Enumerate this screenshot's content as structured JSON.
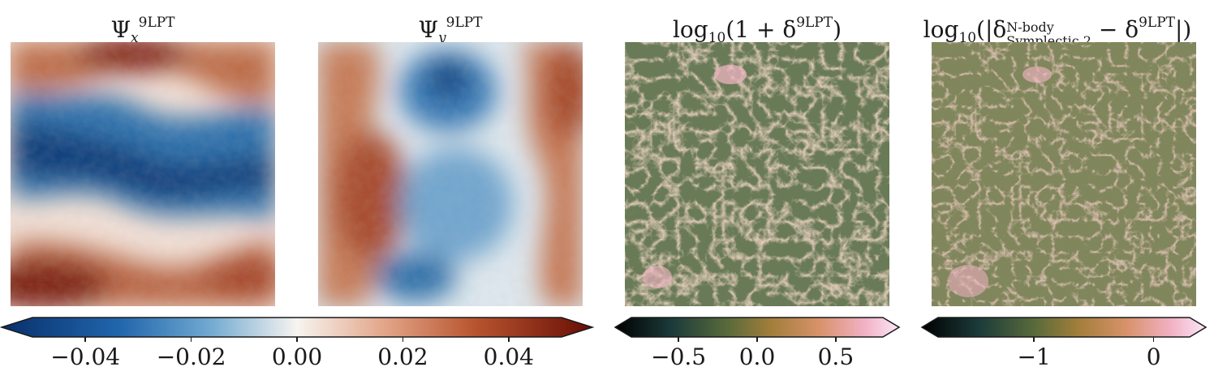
{
  "panels": [
    {
      "title_main": "Ψ",
      "title_sub": "x",
      "title_sup": "9LPT",
      "colormap": "diverging-blue-red"
    },
    {
      "title_main": "Ψ",
      "title_sub": "y",
      "title_sup": "9LPT",
      "colormap": "diverging-blue-red"
    },
    {
      "title_pre": "log",
      "title_log_sub": "10",
      "title_mid": "(1 + δ",
      "title_sup": "9LPT",
      "title_post": ")",
      "colormap": "cubehelix"
    },
    {
      "title_pre": "log",
      "title_log_sub": "10",
      "title_mid": "(|δ",
      "title_sup_top": "N-body",
      "title_sub_bottom": "Symplectic 2",
      "title_mid2": " − δ",
      "title_sup": "9LPT",
      "title_post": "|)",
      "colormap": "cubehelix"
    }
  ],
  "chart_data": [
    {
      "type": "heatmap",
      "title": "Ψx 9LPT",
      "colorbar": {
        "range": [
          -0.05,
          0.05
        ],
        "ticks": [
          "−0.04",
          "−0.02",
          "0.00",
          "0.02",
          "0.04"
        ],
        "tick_values": [
          -0.04,
          -0.02,
          0.0,
          0.02,
          0.04
        ],
        "extend": "both"
      }
    },
    {
      "type": "heatmap",
      "title": "Ψy 9LPT",
      "colorbar": "shared with Ψx"
    },
    {
      "type": "heatmap",
      "title": "log10(1 + δ 9LPT)",
      "colorbar": {
        "range": [
          -0.8,
          0.8
        ],
        "ticks": [
          "−0.5",
          "0.0",
          "0.5"
        ],
        "tick_values": [
          -0.5,
          0.0,
          0.5
        ],
        "extend": "both"
      }
    },
    {
      "type": "heatmap",
      "title": "log10(|δ N-body Symplectic 2 − δ 9LPT|)",
      "colorbar": {
        "range": [
          -1.8,
          0.3
        ],
        "ticks": [
          "−1",
          "0"
        ],
        "tick_values": [
          -1,
          0
        ],
        "extend": "both"
      }
    }
  ]
}
